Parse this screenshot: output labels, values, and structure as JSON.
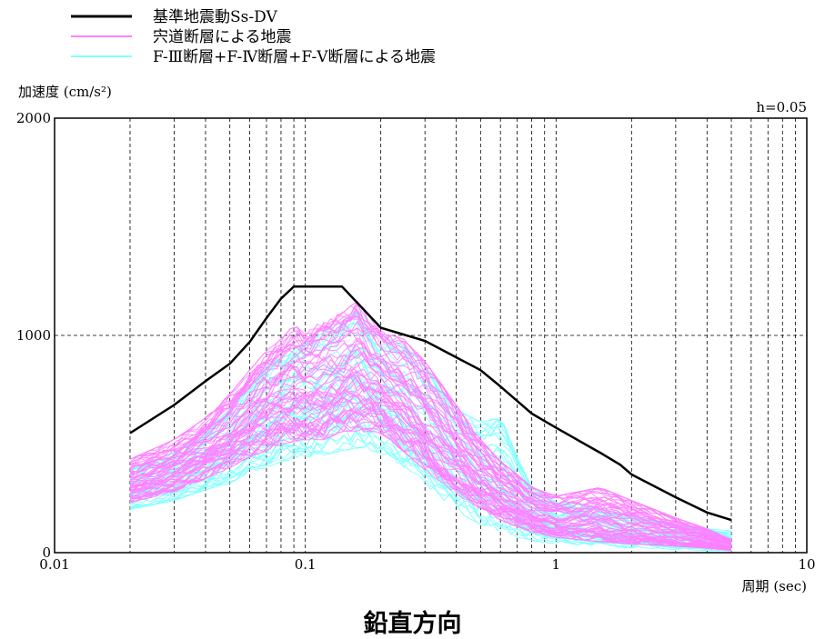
{
  "caption": "鉛直方向",
  "chart_data": {
    "type": "line",
    "x_scale": "log",
    "xlim": [
      0.01,
      10
    ],
    "ylim": [
      0,
      2000
    ],
    "xlabel": "周期 (sec)",
    "ylabel": "加速度 (cm/s²)",
    "annotation": "h=0.05",
    "x_ticks": [
      "0.01",
      "0.1",
      "1",
      "10"
    ],
    "y_ticks": [
      "0",
      "1000",
      "2000"
    ],
    "grid": true,
    "legend_position": "top-left",
    "series": [
      {
        "name": "基準地震動Ss-DV",
        "color": "#000000",
        "points": [
          [
            0.02,
            550
          ],
          [
            0.03,
            680
          ],
          [
            0.04,
            790
          ],
          [
            0.05,
            870
          ],
          [
            0.06,
            970
          ],
          [
            0.07,
            1080
          ],
          [
            0.08,
            1170
          ],
          [
            0.09,
            1225
          ],
          [
            0.1,
            1225
          ],
          [
            0.14,
            1225
          ],
          [
            0.2,
            1035
          ],
          [
            0.3,
            975
          ],
          [
            0.5,
            840
          ],
          [
            0.6,
            765
          ],
          [
            0.8,
            640
          ],
          [
            1.0,
            575
          ],
          [
            1.5,
            460
          ],
          [
            1.8,
            405
          ],
          [
            2.0,
            360
          ],
          [
            3.0,
            255
          ],
          [
            4.0,
            185
          ],
          [
            5.0,
            150
          ]
        ]
      },
      {
        "name": "宍道断層による地震",
        "color": "#ff80ff",
        "band_envelope": {
          "x": [
            0.02,
            0.03,
            0.04,
            0.05,
            0.06,
            0.07,
            0.08,
            0.09,
            0.1,
            0.12,
            0.14,
            0.16,
            0.2,
            0.25,
            0.3,
            0.4,
            0.5,
            0.6,
            0.7,
            0.8,
            1.0,
            1.5,
            2.0,
            3.0,
            4.0,
            5.0
          ],
          "upper": [
            430,
            520,
            620,
            730,
            840,
            930,
            980,
            1050,
            1010,
            1080,
            1100,
            1160,
            1020,
            980,
            880,
            680,
            520,
            420,
            360,
            300,
            260,
            300,
            240,
            160,
            110,
            60
          ],
          "lower": [
            230,
            280,
            340,
            390,
            440,
            470,
            500,
            510,
            520,
            520,
            560,
            560,
            550,
            460,
            380,
            270,
            200,
            150,
            120,
            95,
            70,
            50,
            40,
            30,
            20,
            10
          ]
        }
      },
      {
        "name": "F-Ⅲ断層+F-Ⅳ断層+F-Ⅴ断層による地震",
        "color": "#80ffff",
        "band_envelope": {
          "x": [
            0.02,
            0.03,
            0.04,
            0.05,
            0.06,
            0.07,
            0.08,
            0.09,
            0.1,
            0.12,
            0.14,
            0.16,
            0.2,
            0.25,
            0.3,
            0.4,
            0.5,
            0.6,
            0.7,
            0.8,
            1.0,
            1.5,
            2.0,
            3.0,
            4.0,
            5.0
          ],
          "upper": [
            380,
            460,
            560,
            660,
            760,
            860,
            900,
            940,
            960,
            1020,
            1060,
            1120,
            1000,
            950,
            860,
            660,
            600,
            630,
            440,
            300,
            240,
            200,
            170,
            130,
            110,
            100
          ],
          "lower": [
            200,
            240,
            290,
            320,
            370,
            390,
            420,
            430,
            440,
            450,
            470,
            480,
            460,
            380,
            300,
            190,
            130,
            90,
            70,
            55,
            40,
            30,
            20,
            15,
            10,
            5
          ]
        }
      }
    ]
  }
}
